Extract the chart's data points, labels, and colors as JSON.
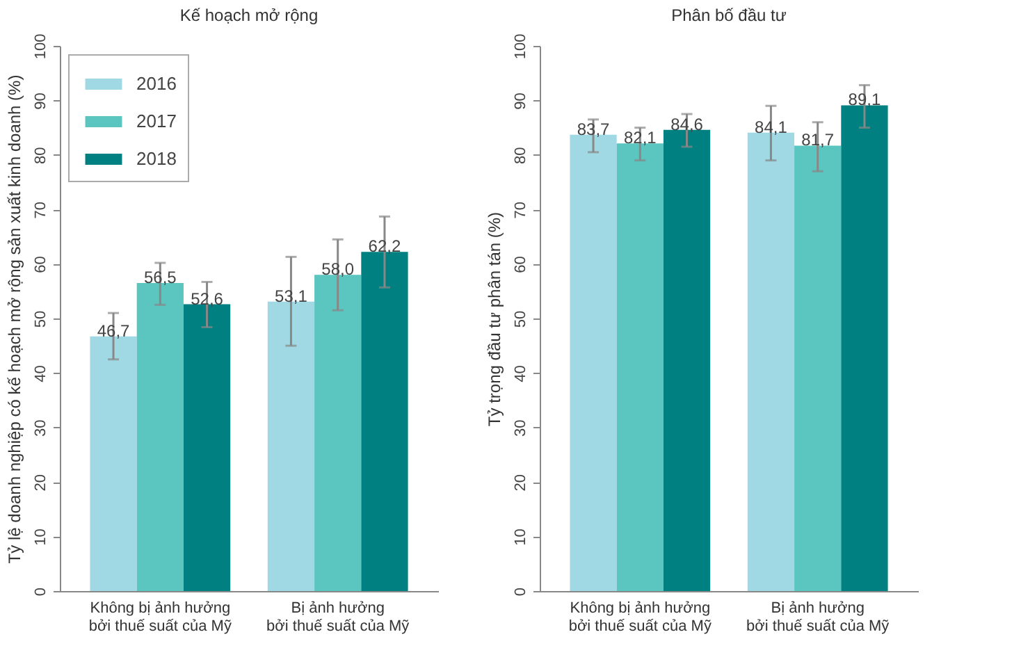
{
  "chart_data": [
    {
      "type": "bar",
      "title": "Kế hoạch mở rộng",
      "ylabel": "Tỷ lệ doanh nghiệp có kế hoạch mở rộng sản xuất kinh doanh (%)",
      "categories": [
        "Không bị ảnh hưởng\nbởi thuế suất của Mỹ",
        "Bị ảnh hưởng\nbởi thuế suất của Mỹ"
      ],
      "series": [
        {
          "name": "2016",
          "color": "#a0d9e4",
          "values": [
            46.7,
            53.1
          ],
          "value_labels": [
            "46,7",
            "53,1"
          ],
          "errors": [
            [
              42.5,
              51.0
            ],
            [
              45.0,
              61.3
            ]
          ]
        },
        {
          "name": "2017",
          "color": "#5bc5c0",
          "values": [
            56.5,
            58.0
          ],
          "value_labels": [
            "56,5",
            "58,0"
          ],
          "errors": [
            [
              52.5,
              60.2
            ],
            [
              51.5,
              64.5
            ]
          ]
        },
        {
          "name": "2018",
          "color": "#008080",
          "values": [
            52.6,
            62.2
          ],
          "value_labels": [
            "52,6",
            "62,2"
          ],
          "errors": [
            [
              48.4,
              56.7
            ],
            [
              55.7,
              68.7
            ]
          ]
        }
      ],
      "ylim": [
        0,
        100
      ],
      "yticks": [
        0,
        10,
        20,
        30,
        40,
        50,
        60,
        70,
        80,
        90,
        100
      ],
      "legend": "top left"
    },
    {
      "type": "bar",
      "title": "Phân bố đầu tư",
      "ylabel": "Tỷ trọng đầu tư phân tán (%)",
      "categories": [
        "Không bị ảnh hưởng\nbởi thuế suất của Mỹ",
        "Bị ảnh hưởng\nbởi thuế suất của Mỹ"
      ],
      "series": [
        {
          "color": "#a0d9e4",
          "values": [
            83.7,
            84.1
          ],
          "value_labels": [
            "83,7",
            "84,1"
          ],
          "errors": [
            [
              80.5,
              86.5
            ],
            [
              79.0,
              89.0
            ]
          ]
        },
        {
          "color": "#5bc5c0",
          "values": [
            82.1,
            81.7
          ],
          "value_labels": [
            "82,1",
            "81,7"
          ],
          "errors": [
            [
              79.0,
              85.0
            ],
            [
              77.0,
              86.0
            ]
          ]
        },
        {
          "color": "#008080",
          "values": [
            84.6,
            89.1
          ],
          "value_labels": [
            "84,6",
            "89,1"
          ],
          "errors": [
            [
              81.5,
              87.5
            ],
            [
              85.0,
              92.8
            ]
          ]
        }
      ],
      "ylim": [
        0,
        100
      ],
      "yticks": [
        0,
        10,
        20,
        30,
        40,
        50,
        60,
        70,
        80,
        90,
        100
      ]
    }
  ]
}
